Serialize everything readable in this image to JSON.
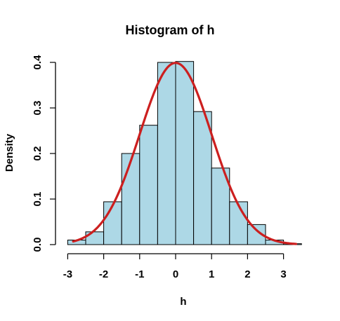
{
  "chart_data": {
    "type": "bar",
    "title": "Histogram of h",
    "xlabel": "h",
    "ylabel": "Density",
    "bin_edges": [
      -3.0,
      -2.5,
      -2.0,
      -1.5,
      -1.0,
      -0.5,
      0.0,
      0.5,
      1.0,
      1.5,
      2.0,
      2.5,
      3.0,
      3.5
    ],
    "values": [
      0.01,
      0.028,
      0.094,
      0.2,
      0.262,
      0.4,
      0.402,
      0.292,
      0.168,
      0.094,
      0.044,
      0.01,
      0.002
    ],
    "x_ticks": [
      -3,
      -2,
      -1,
      0,
      1,
      2,
      3
    ],
    "y_ticks": [
      0.0,
      0.1,
      0.2,
      0.3,
      0.4
    ],
    "x_tick_labels": [
      "-3",
      "-2",
      "-1",
      "0",
      "1",
      "2",
      "3"
    ],
    "y_tick_labels": [
      "0.0",
      "0.1",
      "0.2",
      "0.3",
      "0.4"
    ],
    "xlim": [
      -3.0,
      3.5
    ],
    "ylim": [
      0.0,
      0.4
    ],
    "overlay": {
      "type": "line",
      "function": "normal density",
      "mean": 0,
      "sd": 1,
      "x_range": [
        -2.85,
        3.35
      ]
    },
    "colors": {
      "bar_fill": "#add8e6",
      "bar_stroke": "#000000",
      "curve": "#cc1f1f",
      "text": "#000000"
    },
    "grid": false,
    "legend": "none"
  }
}
